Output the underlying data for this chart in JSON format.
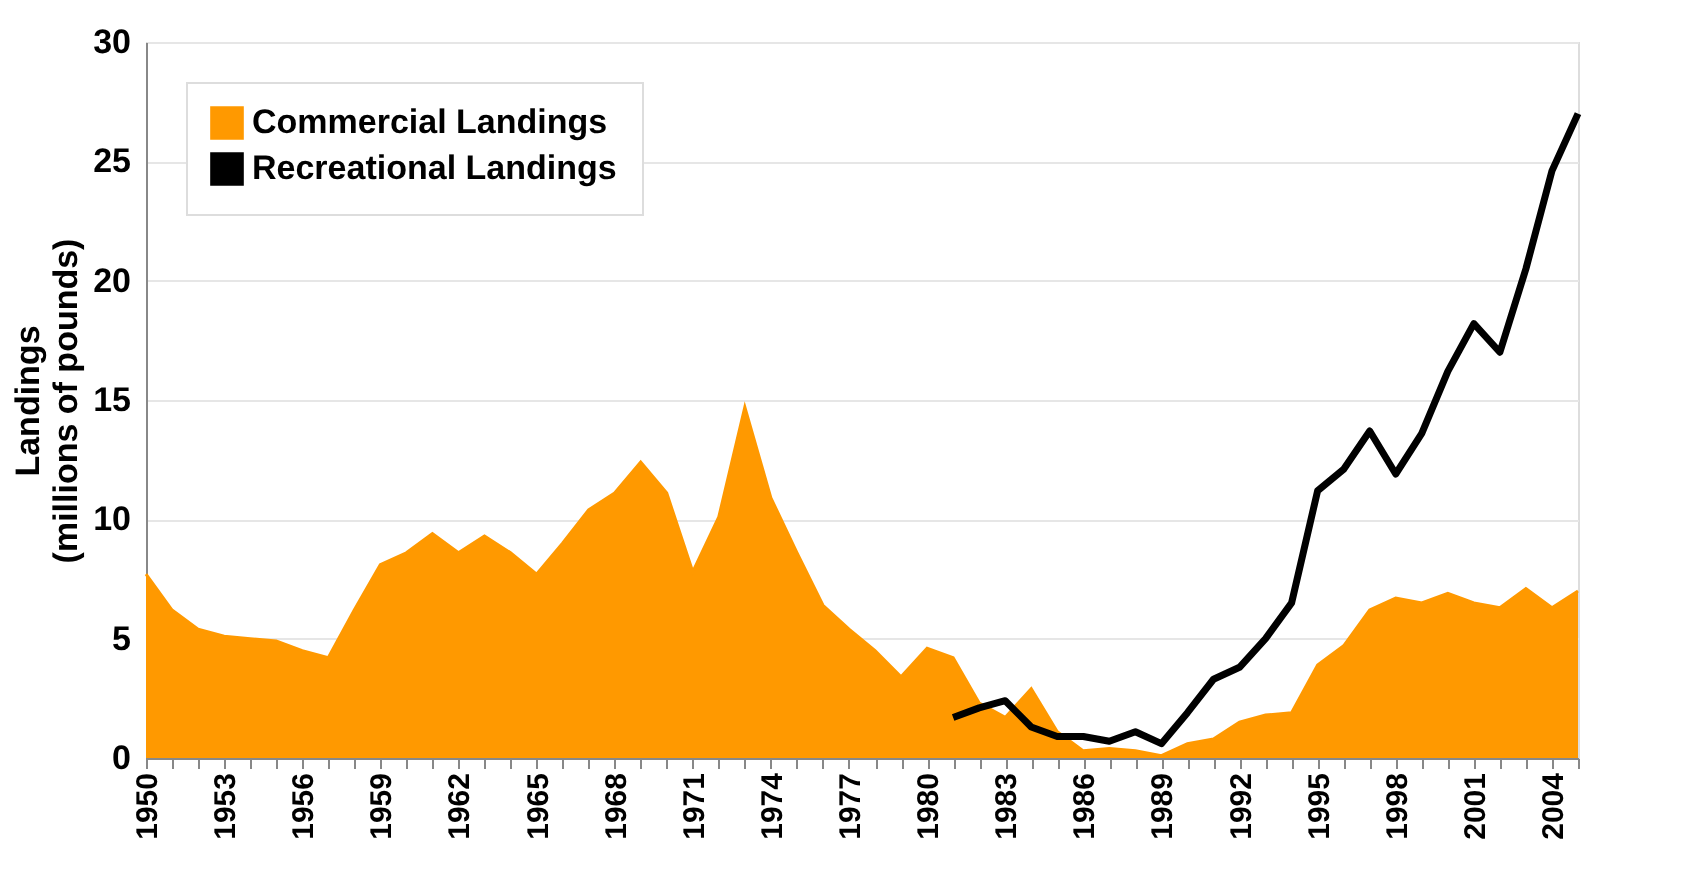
{
  "chart_data": {
    "type": "area",
    "ylabel": "Landings\n(millions of pounds)",
    "categories": [
      "1950",
      null,
      null,
      "1953",
      null,
      null,
      "1956",
      null,
      null,
      "1959",
      null,
      null,
      "1962",
      null,
      null,
      "1965",
      null,
      null,
      "1968",
      null,
      null,
      "1971",
      null,
      null,
      "1974",
      null,
      null,
      "1977",
      null,
      null,
      "1980",
      null,
      null,
      "1983",
      null,
      null,
      "1986",
      null,
      null,
      "1989",
      null,
      null,
      "1992",
      null,
      null,
      "1995",
      null,
      null,
      "1998",
      null,
      null,
      "2001",
      null,
      null,
      "2004",
      null
    ],
    "series": [
      {
        "name": "Commercial Landings",
        "color": "#ff9900",
        "values": [
          7.7,
          6.2,
          5.4,
          5.1,
          5.0,
          4.9,
          4.5,
          4.2,
          6.2,
          8.1,
          8.6,
          9.4,
          8.6,
          9.3,
          8.6,
          7.7,
          9.0,
          10.4,
          11.1,
          12.4,
          11.1,
          7.8,
          10.1,
          14.7,
          10.9,
          8.6,
          6.4,
          5.4,
          4.5,
          3.4,
          4.6,
          4.2,
          2.3,
          1.7,
          2.9,
          1.1,
          0.3,
          0.4,
          0.3,
          0.1,
          0.6,
          0.8,
          1.5,
          1.8,
          1.9,
          3.9,
          4.7,
          6.2,
          6.7,
          6.5,
          6.9,
          6.5,
          6.3,
          7.1,
          6.3,
          7.0
        ]
      },
      {
        "name": "Recreational Landings",
        "type": "line",
        "color": "#000000",
        "values": [
          null,
          null,
          null,
          null,
          null,
          null,
          null,
          null,
          null,
          null,
          null,
          null,
          null,
          null,
          null,
          null,
          null,
          null,
          null,
          null,
          null,
          null,
          null,
          null,
          null,
          null,
          null,
          null,
          null,
          null,
          null,
          1.7,
          2.1,
          2.4,
          1.3,
          0.9,
          0.9,
          0.7,
          1.1,
          0.6,
          1.9,
          3.3,
          3.8,
          5.0,
          6.5,
          11.2,
          12.1,
          13.7,
          11.9,
          13.6,
          16.2,
          18.2,
          17.0,
          20.5,
          24.6,
          27.0
        ]
      }
    ],
    "ylim": [
      0,
      30
    ],
    "yticks": [
      0,
      5,
      10,
      15,
      20,
      25,
      30
    ],
    "grid": "y",
    "legend": "top left",
    "line_style": "solid",
    "marker": "none"
  }
}
